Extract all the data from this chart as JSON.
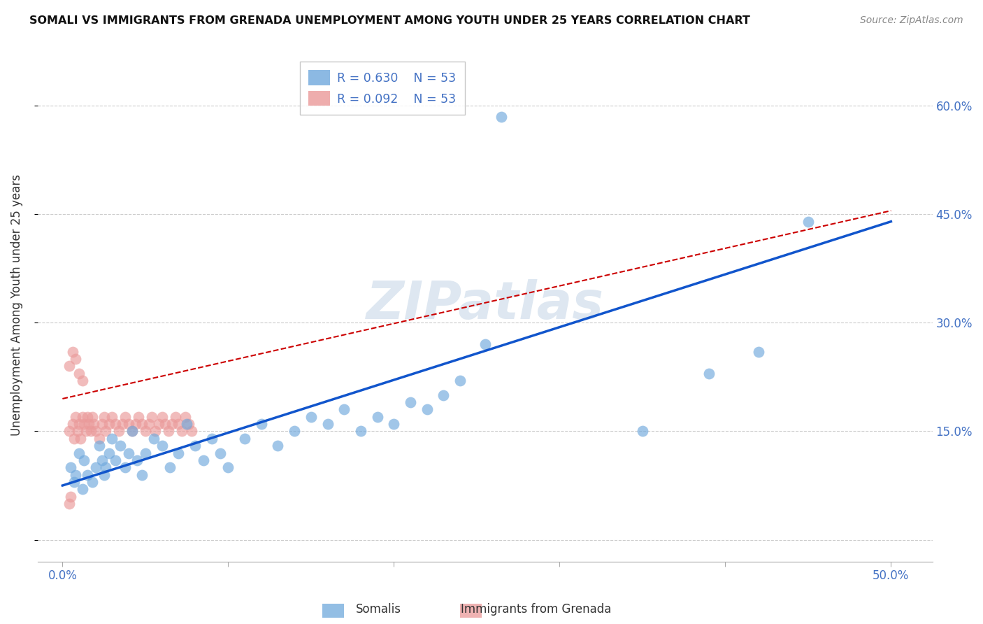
{
  "title": "SOMALI VS IMMIGRANTS FROM GRENADA UNEMPLOYMENT AMONG YOUTH UNDER 25 YEARS CORRELATION CHART",
  "source": "Source: ZipAtlas.com",
  "ylabel": "Unemployment Among Youth under 25 years",
  "tick_color": "#4472c4",
  "xmin": -0.015,
  "xmax": 0.525,
  "ymin": -0.03,
  "ymax": 0.68,
  "somali_R": 0.63,
  "somali_N": 53,
  "grenada_R": 0.092,
  "grenada_N": 53,
  "somali_color": "#6fa8dc",
  "grenada_color": "#ea9999",
  "somali_line_color": "#1155cc",
  "grenada_line_color": "#cc0000",
  "somali_line_start_y": 0.075,
  "somali_line_end_y": 0.44,
  "grenada_line_start_y": 0.195,
  "grenada_line_end_y": 0.455,
  "somali_x": [
    0.005,
    0.007,
    0.008,
    0.01,
    0.012,
    0.013,
    0.015,
    0.018,
    0.02,
    0.022,
    0.024,
    0.025,
    0.026,
    0.028,
    0.03,
    0.032,
    0.035,
    0.038,
    0.04,
    0.042,
    0.045,
    0.048,
    0.05,
    0.055,
    0.06,
    0.065,
    0.07,
    0.075,
    0.08,
    0.085,
    0.09,
    0.095,
    0.1,
    0.11,
    0.12,
    0.13,
    0.14,
    0.15,
    0.16,
    0.17,
    0.18,
    0.19,
    0.2,
    0.21,
    0.22,
    0.23,
    0.24,
    0.255,
    0.265,
    0.35,
    0.39,
    0.42,
    0.45
  ],
  "somali_y": [
    0.1,
    0.08,
    0.09,
    0.12,
    0.07,
    0.11,
    0.09,
    0.08,
    0.1,
    0.13,
    0.11,
    0.09,
    0.1,
    0.12,
    0.14,
    0.11,
    0.13,
    0.1,
    0.12,
    0.15,
    0.11,
    0.09,
    0.12,
    0.14,
    0.13,
    0.1,
    0.12,
    0.16,
    0.13,
    0.11,
    0.14,
    0.12,
    0.1,
    0.14,
    0.16,
    0.13,
    0.15,
    0.17,
    0.16,
    0.18,
    0.15,
    0.17,
    0.16,
    0.19,
    0.18,
    0.2,
    0.22,
    0.27,
    0.585,
    0.15,
    0.23,
    0.26,
    0.44
  ],
  "grenada_x": [
    0.004,
    0.006,
    0.007,
    0.008,
    0.009,
    0.01,
    0.011,
    0.012,
    0.013,
    0.014,
    0.015,
    0.016,
    0.017,
    0.018,
    0.019,
    0.02,
    0.022,
    0.024,
    0.025,
    0.026,
    0.028,
    0.03,
    0.032,
    0.034,
    0.036,
    0.038,
    0.04,
    0.042,
    0.044,
    0.046,
    0.048,
    0.05,
    0.052,
    0.054,
    0.056,
    0.058,
    0.06,
    0.062,
    0.064,
    0.066,
    0.068,
    0.07,
    0.072,
    0.074,
    0.076,
    0.078,
    0.004,
    0.006,
    0.008,
    0.01,
    0.012,
    0.004,
    0.005
  ],
  "grenada_y": [
    0.15,
    0.16,
    0.14,
    0.17,
    0.15,
    0.16,
    0.14,
    0.17,
    0.16,
    0.15,
    0.17,
    0.16,
    0.15,
    0.17,
    0.16,
    0.15,
    0.14,
    0.16,
    0.17,
    0.15,
    0.16,
    0.17,
    0.16,
    0.15,
    0.16,
    0.17,
    0.16,
    0.15,
    0.16,
    0.17,
    0.16,
    0.15,
    0.16,
    0.17,
    0.15,
    0.16,
    0.17,
    0.16,
    0.15,
    0.16,
    0.17,
    0.16,
    0.15,
    0.17,
    0.16,
    0.15,
    0.24,
    0.26,
    0.25,
    0.23,
    0.22,
    0.05,
    0.06
  ]
}
